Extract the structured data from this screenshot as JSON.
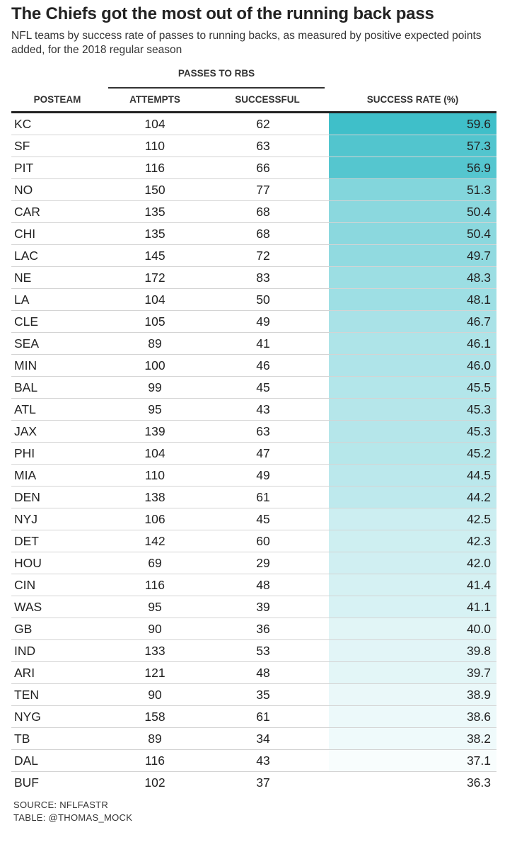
{
  "title": "The Chiefs got the most out of the running back pass",
  "subtitle": "NFL teams by success rate of passes to running backs, as measured by positive expected points added, for the 2018 regular season",
  "spanner_label": "PASSES TO RBS",
  "columns": {
    "team": "POSTEAM",
    "attempts": "ATTEMPTS",
    "successful": "SUCCESSFUL",
    "rate": "SUCCESS RATE (%)"
  },
  "colors": {
    "high": "#3fbfc9",
    "low": "#ffffff"
  },
  "source": "SOURCE: NFLFASTR",
  "credit": "TABLE: @THOMAS_MOCK",
  "chart_data": {
    "type": "table",
    "rows": [
      {
        "team": "KC",
        "attempts": 104,
        "successful": 62,
        "rate": "59.6"
      },
      {
        "team": "SF",
        "attempts": 110,
        "successful": 63,
        "rate": "57.3"
      },
      {
        "team": "PIT",
        "attempts": 116,
        "successful": 66,
        "rate": "56.9"
      },
      {
        "team": "NO",
        "attempts": 150,
        "successful": 77,
        "rate": "51.3"
      },
      {
        "team": "CAR",
        "attempts": 135,
        "successful": 68,
        "rate": "50.4"
      },
      {
        "team": "CHI",
        "attempts": 135,
        "successful": 68,
        "rate": "50.4"
      },
      {
        "team": "LAC",
        "attempts": 145,
        "successful": 72,
        "rate": "49.7"
      },
      {
        "team": "NE",
        "attempts": 172,
        "successful": 83,
        "rate": "48.3"
      },
      {
        "team": "LA",
        "attempts": 104,
        "successful": 50,
        "rate": "48.1"
      },
      {
        "team": "CLE",
        "attempts": 105,
        "successful": 49,
        "rate": "46.7"
      },
      {
        "team": "SEA",
        "attempts": 89,
        "successful": 41,
        "rate": "46.1"
      },
      {
        "team": "MIN",
        "attempts": 100,
        "successful": 46,
        "rate": "46.0"
      },
      {
        "team": "BAL",
        "attempts": 99,
        "successful": 45,
        "rate": "45.5"
      },
      {
        "team": "ATL",
        "attempts": 95,
        "successful": 43,
        "rate": "45.3"
      },
      {
        "team": "JAX",
        "attempts": 139,
        "successful": 63,
        "rate": "45.3"
      },
      {
        "team": "PHI",
        "attempts": 104,
        "successful": 47,
        "rate": "45.2"
      },
      {
        "team": "MIA",
        "attempts": 110,
        "successful": 49,
        "rate": "44.5"
      },
      {
        "team": "DEN",
        "attempts": 138,
        "successful": 61,
        "rate": "44.2"
      },
      {
        "team": "NYJ",
        "attempts": 106,
        "successful": 45,
        "rate": "42.5"
      },
      {
        "team": "DET",
        "attempts": 142,
        "successful": 60,
        "rate": "42.3"
      },
      {
        "team": "HOU",
        "attempts": 69,
        "successful": 29,
        "rate": "42.0"
      },
      {
        "team": "CIN",
        "attempts": 116,
        "successful": 48,
        "rate": "41.4"
      },
      {
        "team": "WAS",
        "attempts": 95,
        "successful": 39,
        "rate": "41.1"
      },
      {
        "team": "GB",
        "attempts": 90,
        "successful": 36,
        "rate": "40.0"
      },
      {
        "team": "IND",
        "attempts": 133,
        "successful": 53,
        "rate": "39.8"
      },
      {
        "team": "ARI",
        "attempts": 121,
        "successful": 48,
        "rate": "39.7"
      },
      {
        "team": "TEN",
        "attempts": 90,
        "successful": 35,
        "rate": "38.9"
      },
      {
        "team": "NYG",
        "attempts": 158,
        "successful": 61,
        "rate": "38.6"
      },
      {
        "team": "TB",
        "attempts": 89,
        "successful": 34,
        "rate": "38.2"
      },
      {
        "team": "DAL",
        "attempts": 116,
        "successful": 43,
        "rate": "37.1"
      },
      {
        "team": "BUF",
        "attempts": 102,
        "successful": 37,
        "rate": "36.3"
      }
    ]
  }
}
